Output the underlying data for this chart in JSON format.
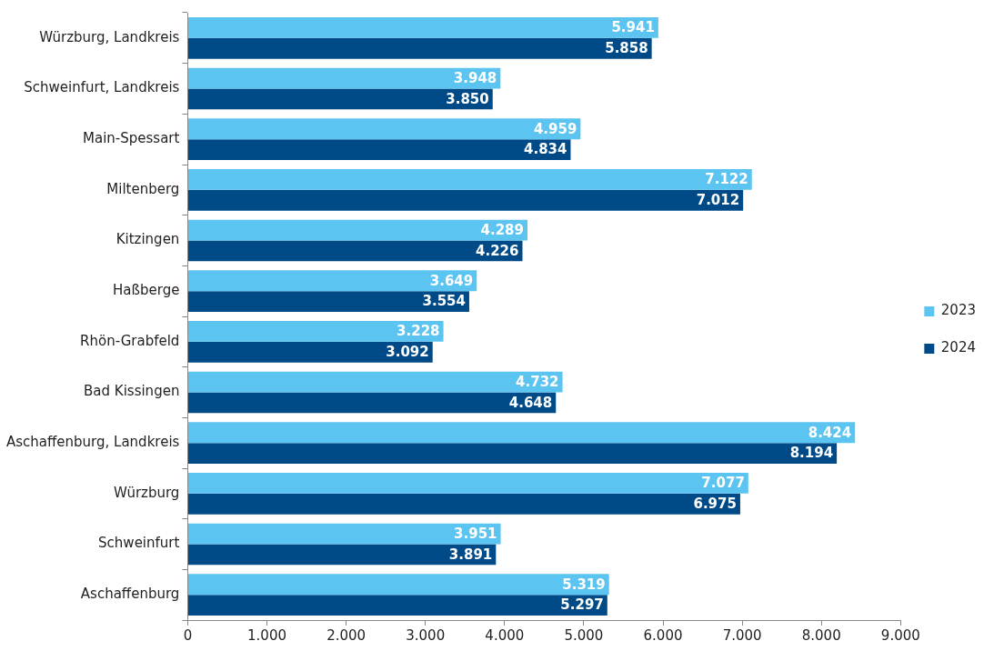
{
  "chart_data": {
    "type": "bar",
    "orientation": "horizontal",
    "categories": [
      "Würzburg, Landkreis",
      "Schweinfurt, Landkreis",
      "Main-Spessart",
      "Miltenberg",
      "Kitzingen",
      "Haßberge",
      "Rhön-Grabfeld",
      "Bad Kissingen",
      "Aschaffenburg, Landkreis",
      "Würzburg",
      "Schweinfurt",
      "Aschaffenburg"
    ],
    "series": [
      {
        "name": "2023",
        "color": "#5bc4f1",
        "values": [
          5941,
          3948,
          4959,
          7122,
          4289,
          3649,
          3228,
          4732,
          8424,
          7077,
          3951,
          5319
        ],
        "value_labels": [
          "5.941",
          "3.948",
          "4.959",
          "7.122",
          "4.289",
          "3.649",
          "3.228",
          "4.732",
          "8.424",
          "7.077",
          "3.951",
          "5.319"
        ]
      },
      {
        "name": "2024",
        "color": "#004a87",
        "values": [
          5858,
          3850,
          4834,
          7012,
          4226,
          3554,
          3092,
          4648,
          8194,
          6975,
          3891,
          5297
        ],
        "value_labels": [
          "5.858",
          "3.850",
          "4.834",
          "7.012",
          "4.226",
          "3.554",
          "3.092",
          "4.648",
          "8.194",
          "6.975",
          "3.891",
          "5.297"
        ]
      }
    ],
    "xlim": [
      0,
      9000
    ],
    "xticks": [
      {
        "value": 0,
        "label": "0"
      },
      {
        "value": 1000,
        "label": "1.000"
      },
      {
        "value": 2000,
        "label": "2.000"
      },
      {
        "value": 3000,
        "label": "3.000"
      },
      {
        "value": 4000,
        "label": "4.000"
      },
      {
        "value": 5000,
        "label": "5.000"
      },
      {
        "value": 6000,
        "label": "6.000"
      },
      {
        "value": 7000,
        "label": "7.000"
      },
      {
        "value": 8000,
        "label": "8.000"
      },
      {
        "value": 9000,
        "label": "9.000"
      }
    ],
    "grid": false,
    "legend": "right"
  }
}
